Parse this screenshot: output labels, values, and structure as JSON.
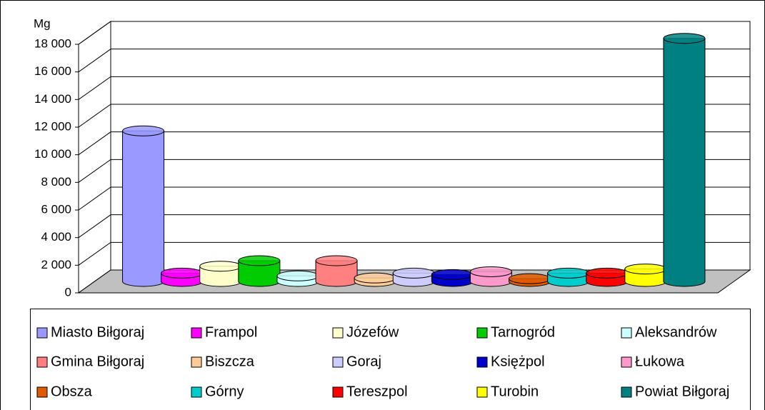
{
  "chart_data": {
    "type": "bar3d",
    "y_label": "Mg",
    "categories": [
      "Miasto Biłgoraj",
      "Frampol",
      "Józefów",
      "Tarnogród",
      "Aleksandrów",
      "Gmina Biłgoraj",
      "Biszcza",
      "Goraj",
      "Księżpol",
      "Łukowa",
      "Obsza",
      "Górny",
      "Tereszpol",
      "Turobin",
      "Powiat Biłgoraj"
    ],
    "values": [
      10900,
      600,
      1100,
      1500,
      400,
      1500,
      250,
      600,
      500,
      700,
      200,
      600,
      600,
      900,
      17600
    ],
    "colors": [
      "#9999ff",
      "#ff00ff",
      "#ffffcc",
      "#00cc00",
      "#ccffff",
      "#ff8080",
      "#ffcc99",
      "#ccccff",
      "#0000cc",
      "#ff99cc",
      "#e05a00",
      "#00cccc",
      "#ff0000",
      "#ffff00",
      "#008080"
    ],
    "ylim": [
      0,
      18000
    ],
    "yticks": [
      {
        "value": 0,
        "label": "0"
      },
      {
        "value": 2000,
        "label": "2 000"
      },
      {
        "value": 4000,
        "label": "4 000"
      },
      {
        "value": 6000,
        "label": "6 000"
      },
      {
        "value": 8000,
        "label": "8 000"
      },
      {
        "value": 10000,
        "label": "10 000"
      },
      {
        "value": 12000,
        "label": "12 000"
      },
      {
        "value": 14000,
        "label": "14 000"
      },
      {
        "value": 16000,
        "label": "16 000"
      },
      {
        "value": 18000,
        "label": "18 000"
      }
    ],
    "grid": true
  }
}
